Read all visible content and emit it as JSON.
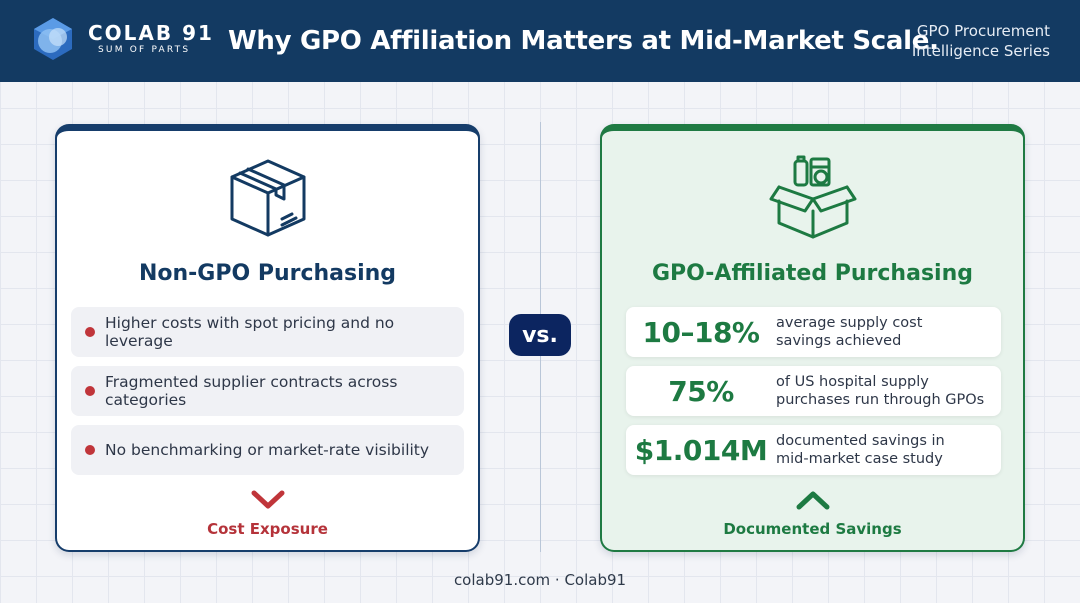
{
  "header": {
    "brand_name": "COLAB 91",
    "brand_tagline": "SUM OF PARTS",
    "title": "Why GPO Affiliation Matters at Mid-Market Scale.",
    "series_line1": "GPO Procurement",
    "series_line2": "Intelligence Series"
  },
  "vs_label": "vs.",
  "left_card": {
    "icon": "box-icon",
    "title": "Non-GPO Purchasing",
    "items": [
      "Higher costs with spot pricing and no leverage",
      "Fragmented supplier contracts across categories",
      "No benchmarking or market-rate visibility"
    ],
    "footer_icon": "chevron-down-icon",
    "footer_label": "Cost Exposure"
  },
  "right_card": {
    "icon": "supply-box-icon",
    "title": "GPO-Affiliated Purchasing",
    "stats": [
      {
        "value": "10–18%",
        "line1": "average supply cost",
        "line2": "savings achieved"
      },
      {
        "value": "75%",
        "line1": "of US hospital supply",
        "line2": "purchases run through GPOs"
      },
      {
        "value": "$1.014M",
        "line1": "documented savings in",
        "line2": "mid-market case study"
      }
    ],
    "footer_icon": "chevron-up-icon",
    "footer_label": "Documented Savings"
  },
  "footer": "colab91.com · Colab91",
  "colors": {
    "navy": "#133a62",
    "green": "#1d7a42",
    "red": "#c0353a"
  }
}
